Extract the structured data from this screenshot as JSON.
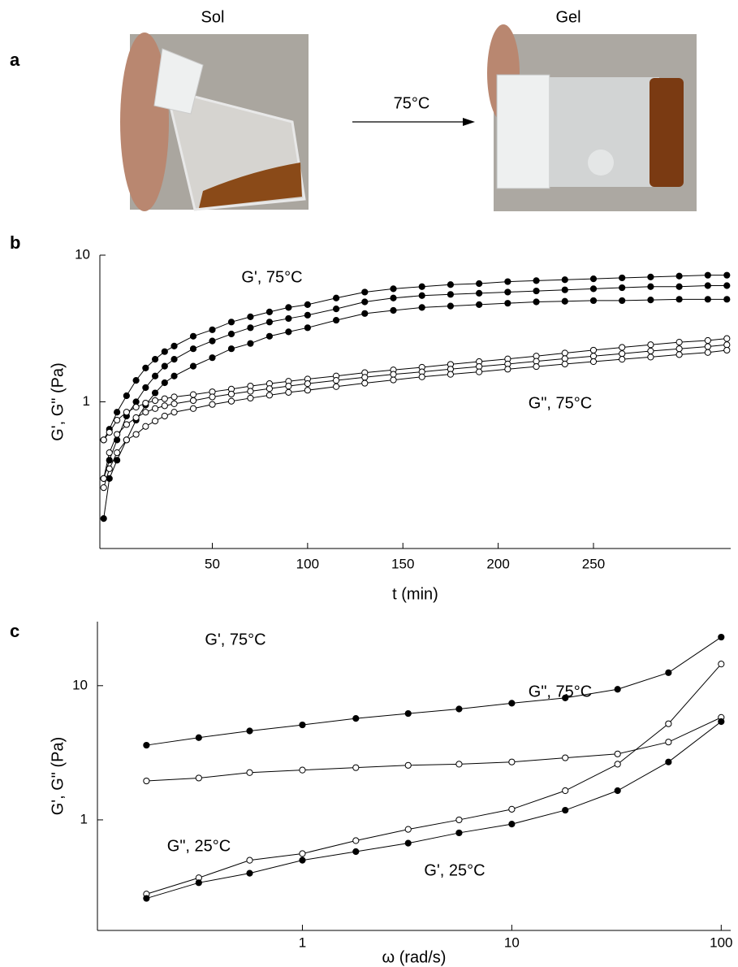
{
  "panel_a": {
    "label": "a",
    "left_caption": "Sol",
    "right_caption": "Gel",
    "arrow_label": "75°C"
  },
  "chart_data": [
    {
      "type": "line",
      "label": "b",
      "xlabel": "t (min)",
      "ylabel": "G', G\" (Pa)",
      "xscale": "linear",
      "yscale": "log",
      "xlim": [
        -9,
        322
      ],
      "xticks": [
        50,
        100,
        150,
        200,
        250
      ],
      "ylim": [
        0.1,
        10
      ],
      "yticks": [
        1,
        10
      ],
      "annotations": [
        "G', 75°C",
        "G\", 75°C"
      ],
      "x": [
        -7,
        -4,
        0,
        5,
        10,
        15,
        20,
        25,
        30,
        40,
        50,
        60,
        70,
        80,
        90,
        100,
        115,
        130,
        145,
        160,
        175,
        190,
        205,
        220,
        235,
        250,
        265,
        280,
        295,
        310,
        320
      ],
      "series": [
        {
          "color": "#000000",
          "marker_fill": "#000000",
          "values": [
            0.55,
            0.65,
            0.85,
            1.1,
            1.4,
            1.7,
            1.95,
            2.2,
            2.4,
            2.8,
            3.1,
            3.5,
            3.8,
            4.1,
            4.4,
            4.6,
            5.1,
            5.6,
            5.9,
            6.1,
            6.3,
            6.4,
            6.6,
            6.7,
            6.8,
            6.9,
            7.0,
            7.1,
            7.2,
            7.3,
            7.3
          ]
        },
        {
          "color": "#000000",
          "marker_fill": "#000000",
          "values": [
            0.3,
            0.4,
            0.55,
            0.8,
            1.0,
            1.25,
            1.5,
            1.75,
            1.95,
            2.3,
            2.6,
            2.9,
            3.2,
            3.5,
            3.7,
            3.9,
            4.3,
            4.8,
            5.1,
            5.3,
            5.4,
            5.5,
            5.6,
            5.7,
            5.8,
            5.9,
            6.0,
            6.1,
            6.1,
            6.2,
            6.2
          ]
        },
        {
          "color": "#000000",
          "marker_fill": "#000000",
          "values": [
            0.16,
            0.3,
            0.4,
            0.55,
            0.75,
            0.95,
            1.15,
            1.35,
            1.5,
            1.75,
            2.0,
            2.3,
            2.5,
            2.8,
            3.0,
            3.2,
            3.6,
            4.0,
            4.2,
            4.4,
            4.5,
            4.6,
            4.7,
            4.8,
            4.85,
            4.9,
            4.9,
            4.95,
            5.0,
            5.0,
            5.0
          ]
        },
        {
          "color": "#000000",
          "marker_fill": "#ffffff",
          "values": [
            0.55,
            0.62,
            0.75,
            0.85,
            0.92,
            0.98,
            1.02,
            1.05,
            1.08,
            1.12,
            1.17,
            1.22,
            1.28,
            1.33,
            1.38,
            1.43,
            1.5,
            1.58,
            1.65,
            1.72,
            1.8,
            1.88,
            1.96,
            2.05,
            2.15,
            2.25,
            2.35,
            2.45,
            2.55,
            2.62,
            2.7
          ]
        },
        {
          "color": "#000000",
          "marker_fill": "#ffffff",
          "values": [
            0.3,
            0.45,
            0.6,
            0.7,
            0.78,
            0.85,
            0.9,
            0.94,
            0.97,
            1.02,
            1.08,
            1.13,
            1.18,
            1.23,
            1.28,
            1.33,
            1.4,
            1.47,
            1.54,
            1.6,
            1.67,
            1.74,
            1.81,
            1.89,
            1.97,
            2.05,
            2.13,
            2.22,
            2.3,
            2.38,
            2.45
          ]
        },
        {
          "color": "#000000",
          "marker_fill": "#ffffff",
          "values": [
            0.26,
            0.35,
            0.45,
            0.55,
            0.6,
            0.68,
            0.74,
            0.8,
            0.85,
            0.9,
            0.96,
            1.01,
            1.06,
            1.11,
            1.16,
            1.2,
            1.27,
            1.34,
            1.41,
            1.48,
            1.54,
            1.6,
            1.67,
            1.74,
            1.81,
            1.88,
            1.95,
            2.02,
            2.1,
            2.17,
            2.25
          ]
        }
      ]
    },
    {
      "type": "line",
      "label": "c",
      "xlabel": "ω (rad/s)",
      "ylabel": "G', G\" (Pa)",
      "xscale": "log",
      "yscale": "log",
      "xlim": [
        0.105,
        111
      ],
      "xticks": [
        1,
        10,
        100
      ],
      "ylim": [
        0.15,
        30
      ],
      "yticks": [
        1,
        10
      ],
      "annotations": [
        "G', 75°C",
        "G\", 75°C",
        "G\", 25°C",
        "G', 25°C"
      ],
      "x": [
        0.18,
        0.32,
        0.56,
        1,
        1.8,
        3.2,
        5.6,
        10,
        18,
        32,
        56,
        100
      ],
      "series": [
        {
          "color": "#000000",
          "marker_fill": "#000000",
          "values": [
            3.6,
            4.1,
            4.6,
            5.1,
            5.7,
            6.2,
            6.7,
            7.4,
            8.1,
            9.4,
            12.5,
            23
          ]
        },
        {
          "color": "#000000",
          "marker_fill": "#ffffff",
          "values": [
            1.95,
            2.05,
            2.25,
            2.35,
            2.45,
            2.55,
            2.6,
            2.7,
            2.9,
            3.1,
            3.8,
            5.8
          ]
        },
        {
          "color": "#000000",
          "marker_fill": "#ffffff",
          "values": [
            0.28,
            0.37,
            0.5,
            0.56,
            0.7,
            0.85,
            1.0,
            1.2,
            1.65,
            2.6,
            5.2,
            14.5
          ]
        },
        {
          "color": "#000000",
          "marker_fill": "#000000",
          "values": [
            0.26,
            0.34,
            0.4,
            0.5,
            0.58,
            0.67,
            0.8,
            0.93,
            1.18,
            1.65,
            2.7,
            5.4
          ]
        }
      ]
    }
  ]
}
